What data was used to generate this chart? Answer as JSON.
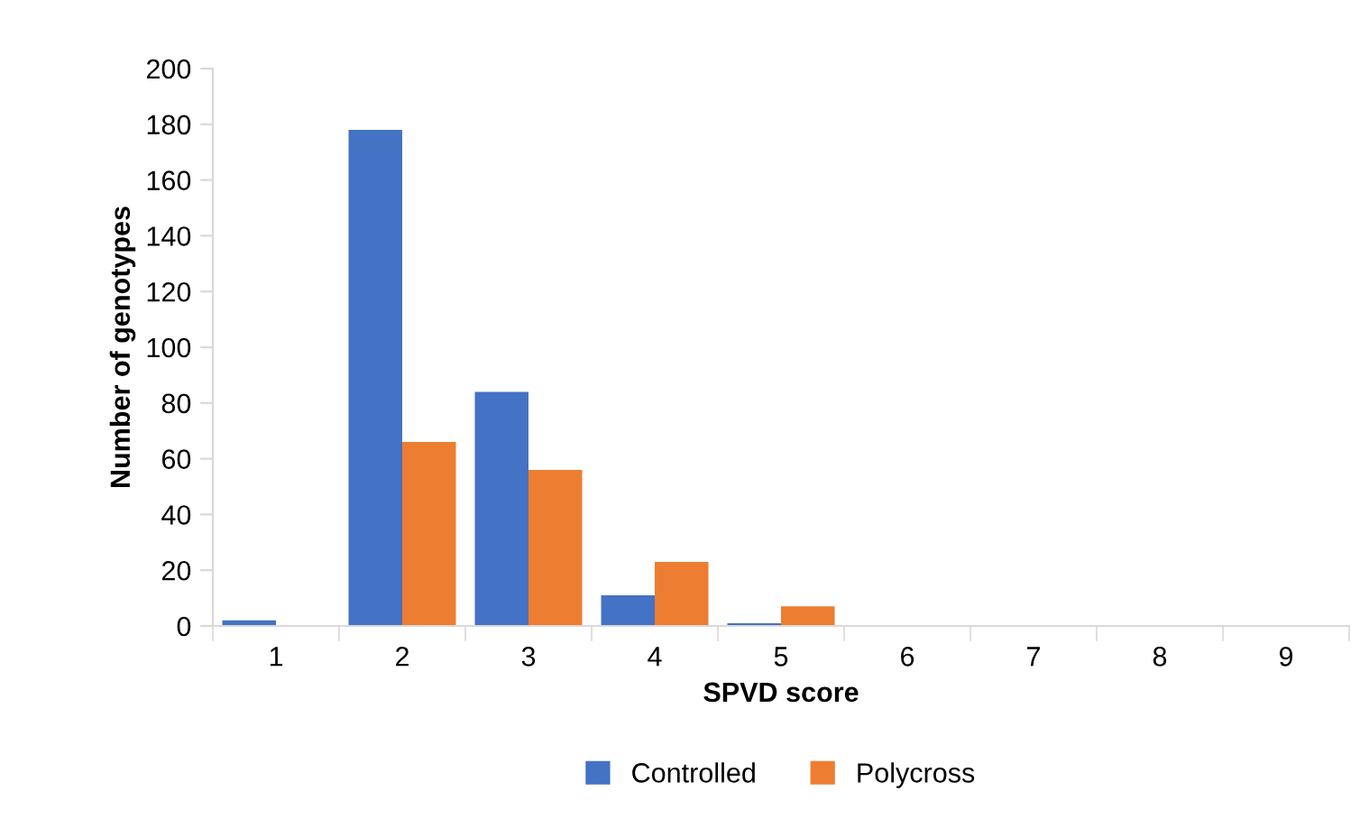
{
  "chart_data": {
    "type": "bar",
    "xlabel": "SPVD score",
    "ylabel": "Number of genotypes",
    "categories": [
      "1",
      "2",
      "3",
      "4",
      "5",
      "6",
      "7",
      "8",
      "9"
    ],
    "series": [
      {
        "name": "Controlled",
        "color": "#4472c4",
        "values": [
          2,
          178,
          84,
          11,
          1,
          0,
          0,
          0,
          0
        ]
      },
      {
        "name": "Polycross",
        "color": "#ed7d31",
        "values": [
          0,
          66,
          56,
          23,
          7,
          0,
          0,
          0,
          0
        ]
      }
    ],
    "ylim": [
      0,
      200
    ],
    "yticks": [
      0,
      20,
      40,
      60,
      80,
      100,
      120,
      140,
      160,
      180,
      200
    ],
    "grid": false,
    "legend": "bottom"
  }
}
